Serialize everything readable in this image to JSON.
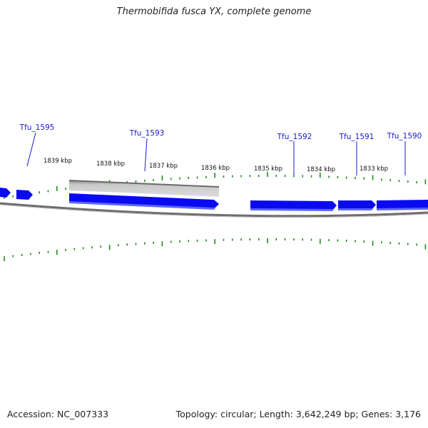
{
  "title": "Thermobifida fusca YX, complete genome",
  "accession": "Accession: NC_007333",
  "summary": "Topology: circular; Length: 3,642,249 bp; Genes: 3,176",
  "genes": [
    {
      "id": "gene-tfu-1595",
      "label": "Tfu_1595"
    },
    {
      "id": "gene-tfu-1593",
      "label": "Tfu_1593"
    },
    {
      "id": "gene-tfu-1592",
      "label": "Tfu_1592"
    },
    {
      "id": "gene-tfu-1591",
      "label": "Tfu_1591"
    },
    {
      "id": "gene-tfu-1590",
      "label": "Tfu_1590"
    }
  ],
  "scale_labels": [
    "1839 kbp",
    "1838 kbp",
    "1837 kbp",
    "1836 kbp",
    "1835 kbp",
    "1834 kbp",
    "1833 kbp"
  ],
  "colors": {
    "gene_label": "#1a1acc",
    "gene_fill": "#0a0af0",
    "gene_shadow": "#5a64ff",
    "tick": "#1f8a1f",
    "backbone": "#6e6e6e",
    "feature_gray": "#b4b4b4"
  }
}
